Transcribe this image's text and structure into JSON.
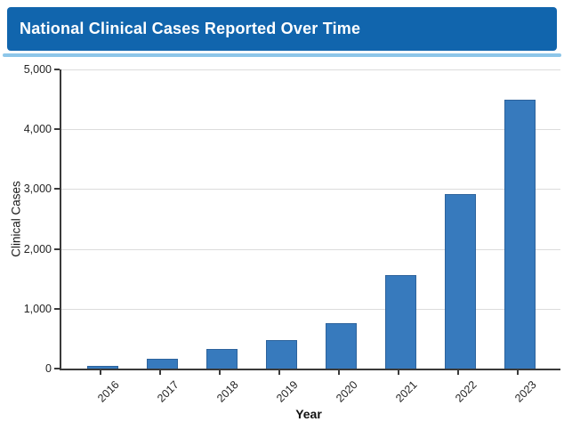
{
  "header": {
    "title": "National Clinical Cases Reported Over Time",
    "bg_color": "#1165ad",
    "underline_color": "#8dc6e9",
    "text_color": "#ffffff"
  },
  "chart_data": {
    "type": "bar",
    "title": "National Clinical Cases Reported Over Time",
    "categories": [
      "2016",
      "2017",
      "2018",
      "2019",
      "2020",
      "2021",
      "2022",
      "2023"
    ],
    "values": [
      50,
      165,
      330,
      475,
      765,
      1560,
      2910,
      4500
    ],
    "xlabel": "Year",
    "ylabel": "Clinical Cases",
    "ylim": [
      0,
      5000
    ],
    "ytick_step": 1000,
    "ytick_labels": [
      "0",
      "1,000",
      "2,000",
      "3,000",
      "4,000",
      "5,000"
    ],
    "grid": true,
    "legend_position": "none",
    "bar_color": "#377abd",
    "bar_edge_color": "#2d639c",
    "gridline_color": "#dcdcdc",
    "axis_color": "#3a3a3a",
    "tick_label_color": "#242424",
    "x_tick_rotation_deg": -45
  }
}
